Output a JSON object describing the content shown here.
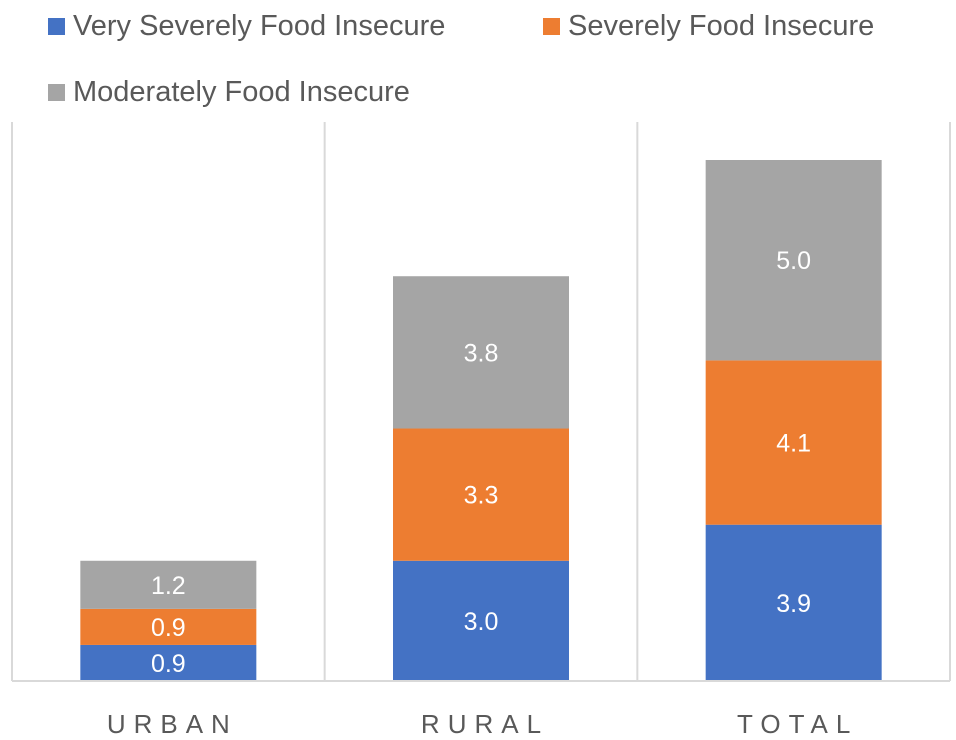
{
  "chart_data": {
    "type": "bar",
    "stacked": true,
    "categories": [
      "URBAN",
      "RURAL",
      "TOTAL"
    ],
    "series": [
      {
        "name": "Very Severely Food Insecure",
        "color": "#4472C4",
        "values": [
          0.9,
          3.0,
          3.9
        ]
      },
      {
        "name": "Severely Food Insecure",
        "color": "#ED7D31",
        "values": [
          0.9,
          3.3,
          4.1
        ]
      },
      {
        "name": "Moderately Food Insecure",
        "color": "#A5A5A5",
        "values": [
          1.2,
          3.8,
          5.0
        ]
      }
    ],
    "data_labels": [
      [
        "0.9",
        "3.0",
        "3.9"
      ],
      [
        "0.9",
        "3.3",
        "4.1"
      ],
      [
        "1.2",
        "3.8",
        "5.0"
      ]
    ],
    "ylim": [
      0,
      14
    ],
    "legend_position": "top",
    "gridlines": "vertical category separators",
    "title": "",
    "xlabel": "",
    "ylabel": ""
  }
}
